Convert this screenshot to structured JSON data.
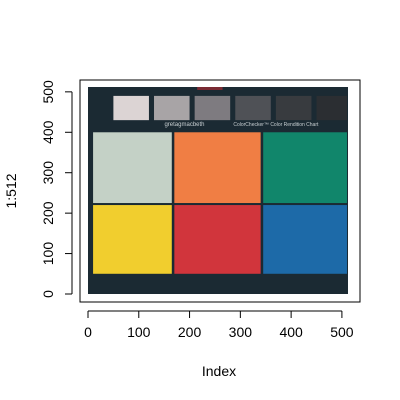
{
  "chart_data": {
    "type": "image",
    "xlabel": "Index",
    "ylabel": "1:512",
    "xlim": [
      0,
      512
    ],
    "ylim": [
      0,
      512
    ],
    "x_ticks": [
      0,
      100,
      200,
      300,
      400,
      500
    ],
    "y_ticks": [
      0,
      100,
      200,
      300,
      400,
      500
    ],
    "embedded_text": {
      "brand": "gretagmacbeth",
      "chart_name": "ColorChecker™ Color Rendition Chart"
    },
    "background_color": "#1b2a33",
    "grayscale_patches": [
      {
        "color": "#dcd4d4",
        "x": [
          50,
          120
        ],
        "y": [
          430,
          490
        ]
      },
      {
        "color": "#a8a4a6",
        "x": [
          130,
          200
        ],
        "y": [
          430,
          490
        ]
      },
      {
        "color": "#7e7b80",
        "x": [
          210,
          280
        ],
        "y": [
          430,
          490
        ]
      },
      {
        "color": "#4f5156",
        "x": [
          290,
          360
        ],
        "y": [
          430,
          490
        ]
      },
      {
        "color": "#383b3f",
        "x": [
          370,
          440
        ],
        "y": [
          430,
          490
        ]
      },
      {
        "color": "#2b2e32",
        "x": [
          450,
          510
        ],
        "y": [
          430,
          490
        ]
      }
    ],
    "color_patches": [
      {
        "color": "#c4d1c6",
        "x": [
          10,
          165
        ],
        "y": [
          225,
          400
        ]
      },
      {
        "color": "#f07e44",
        "x": [
          170,
          340
        ],
        "y": [
          225,
          400
        ]
      },
      {
        "color": "#11866b",
        "x": [
          345,
          510
        ],
        "y": [
          225,
          400
        ]
      },
      {
        "color": "#f1ce2e",
        "x": [
          10,
          165
        ],
        "y": [
          50,
          220
        ]
      },
      {
        "color": "#d1353c",
        "x": [
          170,
          340
        ],
        "y": [
          50,
          220
        ]
      },
      {
        "color": "#1d6aa8",
        "x": [
          345,
          510
        ],
        "y": [
          50,
          220
        ]
      }
    ]
  }
}
